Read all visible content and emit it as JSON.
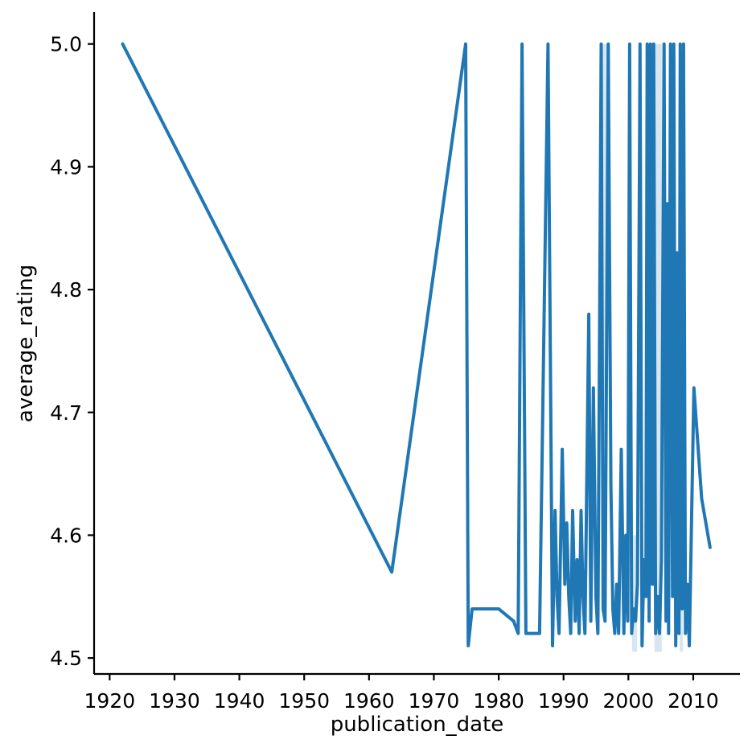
{
  "page": {
    "background": "#ffffff",
    "title": ""
  },
  "chart_data": {
    "type": "line",
    "title": "",
    "xlabel": "publication_date",
    "ylabel": "average_rating",
    "grid": false,
    "legend": "none",
    "line_color": "#1f77b4",
    "line_width": 4,
    "axis_color": "#000000",
    "tick_label_color": "#000000",
    "xlim": [
      1917.6,
      2017.2
    ],
    "ylim": [
      4.487,
      5.026
    ],
    "x_ticks": {
      "values": [
        1920,
        1930,
        1940,
        1950,
        1960,
        1970,
        1980,
        1990,
        2000,
        2010
      ],
      "labels": [
        "1920",
        "1930",
        "1940",
        "1950",
        "1960",
        "1970",
        "1980",
        "1990",
        "2000",
        "2010"
      ]
    },
    "y_ticks": {
      "values": [
        4.5,
        4.6,
        4.7,
        4.8,
        4.9,
        5.0
      ],
      "labels": [
        "4.5",
        "4.6",
        "4.7",
        "4.8",
        "4.9",
        "5.0"
      ]
    },
    "ci_band": {
      "color": "#1f77b4",
      "opacity": 0.18,
      "regions": [
        {
          "x0": 1996.05,
          "x1": 1996.75,
          "y0": 4.66,
          "y1": 5.0
        },
        {
          "x0": 2000.55,
          "x1": 2001.35,
          "y0": 4.505,
          "y1": 4.6
        },
        {
          "x0": 2004.0,
          "x1": 2005.15,
          "y0": 4.505,
          "y1": 5.0
        },
        {
          "x0": 2007.9,
          "x1": 2008.4,
          "y0": 4.505,
          "y1": 4.58
        }
      ]
    },
    "series": [
      {
        "name": "average_rating",
        "points": [
          [
            1922.0,
            5.0
          ],
          [
            1963.5,
            4.57
          ],
          [
            1974.9,
            5.0
          ],
          [
            1975.3,
            4.51
          ],
          [
            1975.9,
            4.54
          ],
          [
            1980.0,
            4.54
          ],
          [
            1982.3,
            4.53
          ],
          [
            1983.0,
            4.52
          ],
          [
            1983.6,
            5.0
          ],
          [
            1984.2,
            4.52
          ],
          [
            1986.3,
            4.52
          ],
          [
            1987.6,
            5.0
          ],
          [
            1988.3,
            4.51
          ],
          [
            1988.7,
            4.62
          ],
          [
            1989.0,
            4.55
          ],
          [
            1989.3,
            4.52
          ],
          [
            1989.8,
            4.67
          ],
          [
            1990.2,
            4.56
          ],
          [
            1990.5,
            4.61
          ],
          [
            1990.8,
            4.55
          ],
          [
            1991.1,
            4.52
          ],
          [
            1991.4,
            4.62
          ],
          [
            1991.8,
            4.53
          ],
          [
            1992.1,
            4.58
          ],
          [
            1992.4,
            4.52
          ],
          [
            1992.7,
            4.62
          ],
          [
            1993.0,
            4.55
          ],
          [
            1993.3,
            4.52
          ],
          [
            1993.9,
            4.78
          ],
          [
            1994.2,
            4.53
          ],
          [
            1994.6,
            4.72
          ],
          [
            1995.0,
            4.55
          ],
          [
            1995.3,
            4.52
          ],
          [
            1995.8,
            5.0
          ],
          [
            1996.1,
            4.54
          ],
          [
            1996.4,
            4.53
          ],
          [
            1996.9,
            5.0
          ],
          [
            1997.3,
            4.64
          ],
          [
            1997.6,
            4.54
          ],
          [
            1997.9,
            4.52
          ],
          [
            1998.2,
            4.56
          ],
          [
            1998.5,
            4.52
          ],
          [
            1998.9,
            4.67
          ],
          [
            1999.3,
            4.52
          ],
          [
            1999.6,
            4.6
          ],
          [
            1999.9,
            4.53
          ],
          [
            2000.2,
            5.0
          ],
          [
            2000.5,
            4.52
          ],
          [
            2000.8,
            4.54
          ],
          [
            2001.1,
            4.53
          ],
          [
            2001.4,
            4.56
          ],
          [
            2001.8,
            5.0
          ],
          [
            2002.1,
            4.51
          ],
          [
            2002.4,
            4.58
          ],
          [
            2002.7,
            4.55
          ],
          [
            2002.9,
            5.0
          ],
          [
            2003.2,
            4.53
          ],
          [
            2003.4,
            5.0
          ],
          [
            2003.7,
            4.56
          ],
          [
            2003.9,
            5.0
          ],
          [
            2004.2,
            4.52
          ],
          [
            2004.5,
            4.55
          ],
          [
            2004.8,
            4.52
          ],
          [
            2005.1,
            4.58
          ],
          [
            2005.5,
            5.0
          ],
          [
            2005.8,
            4.53
          ],
          [
            2006.0,
            4.87
          ],
          [
            2006.2,
            4.52
          ],
          [
            2006.5,
            5.0
          ],
          [
            2006.8,
            4.55
          ],
          [
            2007.0,
            5.0
          ],
          [
            2007.3,
            4.51
          ],
          [
            2007.5,
            4.83
          ],
          [
            2007.8,
            4.52
          ],
          [
            2008.0,
            5.0
          ],
          [
            2008.3,
            4.54
          ],
          [
            2008.5,
            5.0
          ],
          [
            2008.8,
            4.52
          ],
          [
            2009.1,
            4.56
          ],
          [
            2009.4,
            4.51
          ],
          [
            2010.1,
            4.72
          ],
          [
            2011.3,
            4.63
          ],
          [
            2012.6,
            4.59
          ]
        ]
      }
    ]
  }
}
